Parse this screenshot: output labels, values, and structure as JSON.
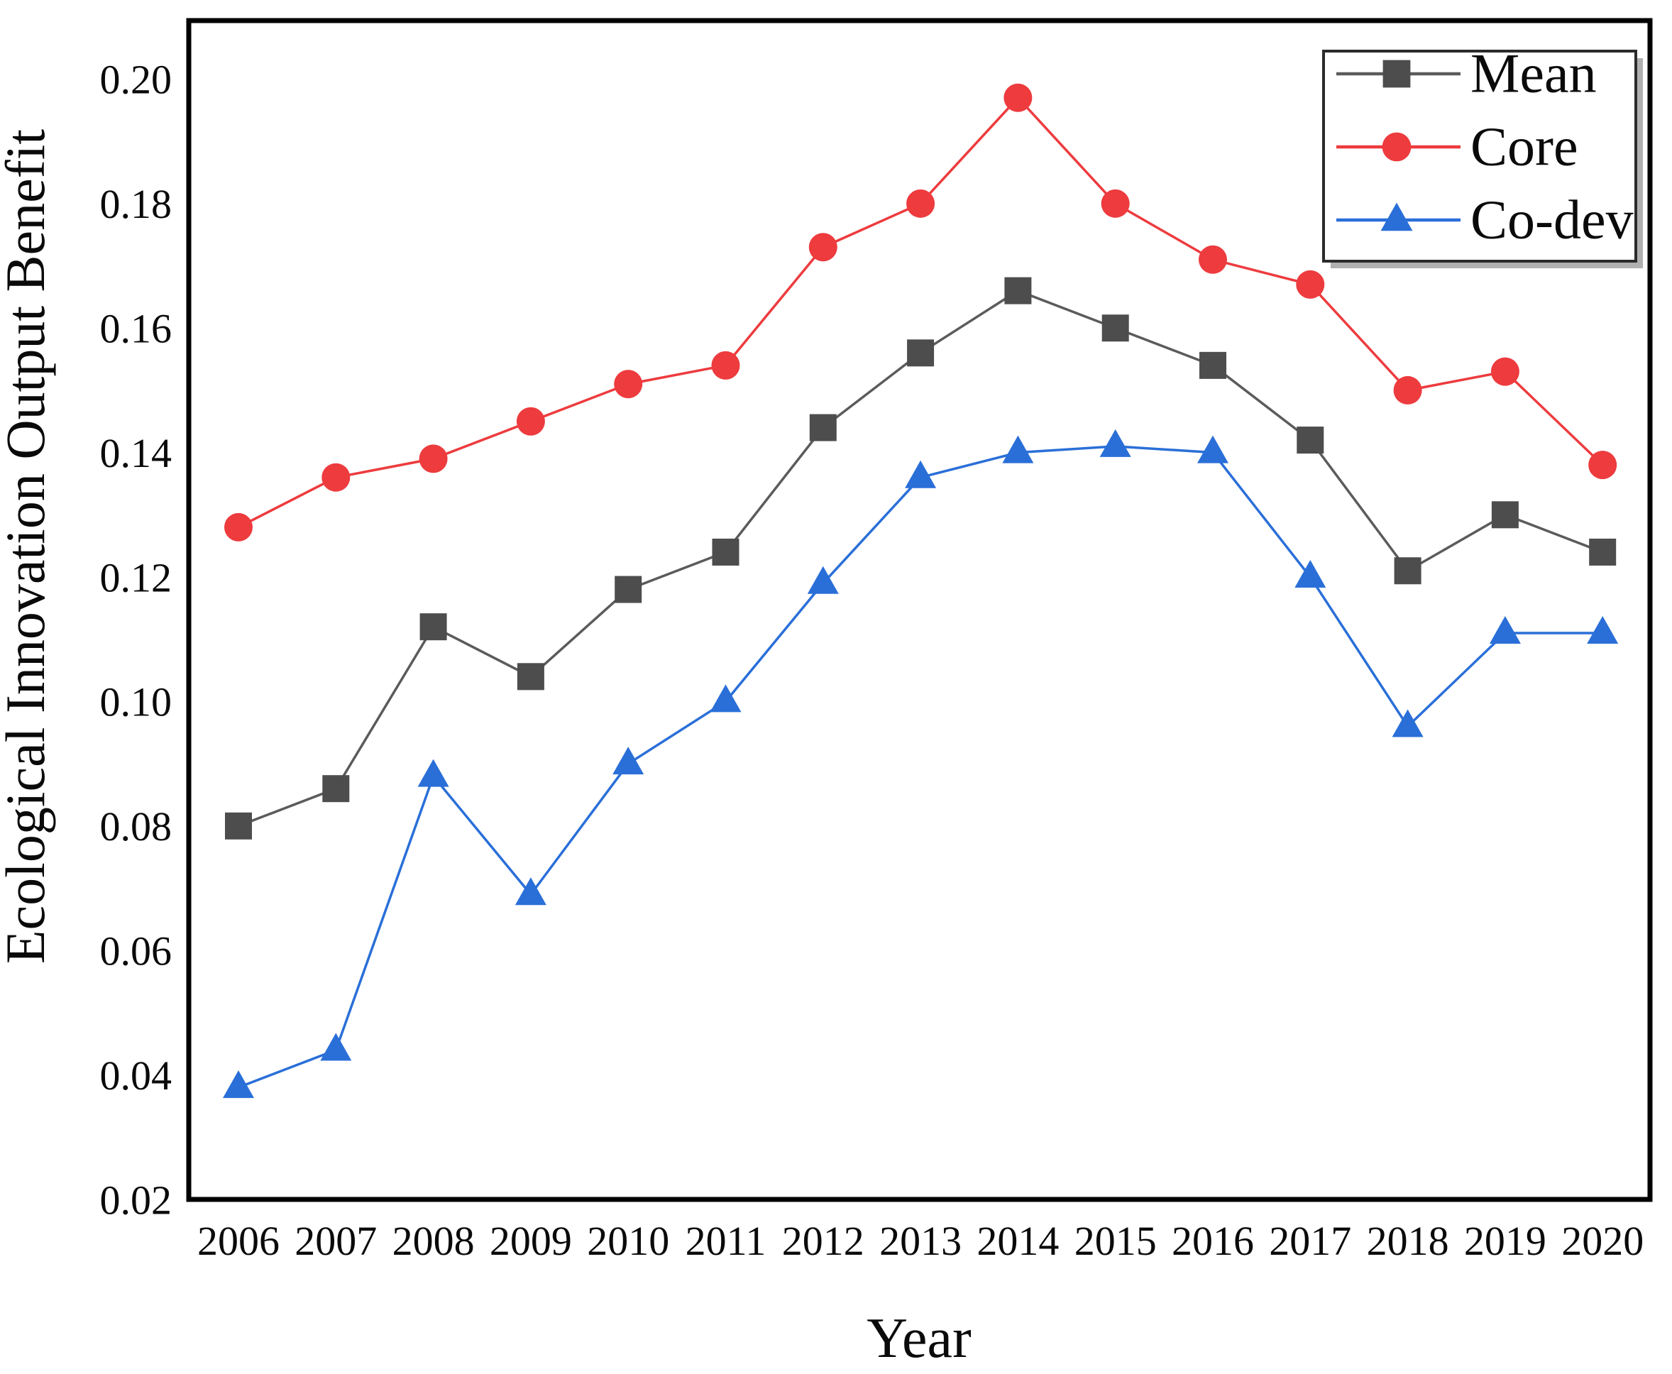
{
  "figure": {
    "background": "#ffffff",
    "frame_color": "#000000"
  },
  "chart_data": {
    "type": "line",
    "title": "",
    "xlabel": "Year",
    "ylabel": "Ecological Innovation Output Benefit",
    "categories": [
      "2006",
      "2007",
      "2008",
      "2009",
      "2010",
      "2011",
      "2012",
      "2013",
      "2014",
      "2015",
      "2016",
      "2017",
      "2018",
      "2019",
      "2020"
    ],
    "series": [
      {
        "name": "Mean",
        "marker": "square",
        "color": "#4D4D4D",
        "line_color": "#5B5B5B",
        "values": [
          0.08,
          0.086,
          0.112,
          0.104,
          0.118,
          0.124,
          0.144,
          0.156,
          0.166,
          0.16,
          0.154,
          0.142,
          0.121,
          0.13,
          0.124
        ]
      },
      {
        "name": "Core",
        "marker": "circle",
        "color": "#ED3B3E",
        "line_color": "#ED3B3E",
        "values": [
          0.128,
          0.136,
          0.139,
          0.145,
          0.151,
          0.154,
          0.173,
          0.18,
          0.197,
          0.18,
          0.171,
          0.167,
          0.15,
          0.153,
          0.138
        ]
      },
      {
        "name": "Co-dev",
        "marker": "triangle",
        "color": "#2A6FD8",
        "line_color": "#2A6FD8",
        "values": [
          0.038,
          0.044,
          0.088,
          0.069,
          0.09,
          0.1,
          0.119,
          0.136,
          0.14,
          0.141,
          0.14,
          0.12,
          0.096,
          0.111,
          0.111
        ]
      }
    ],
    "ylim": [
      0.02,
      0.2094
    ],
    "yticks": [
      0.2,
      0.18,
      0.16,
      0.14,
      0.12,
      0.1,
      0.08,
      0.06,
      0.04,
      0.02
    ],
    "ytick_format_decimals": 2,
    "grid": false,
    "legend_position": "top-right",
    "legend_entries": [
      "Mean",
      "Core",
      "Co-dev"
    ]
  }
}
